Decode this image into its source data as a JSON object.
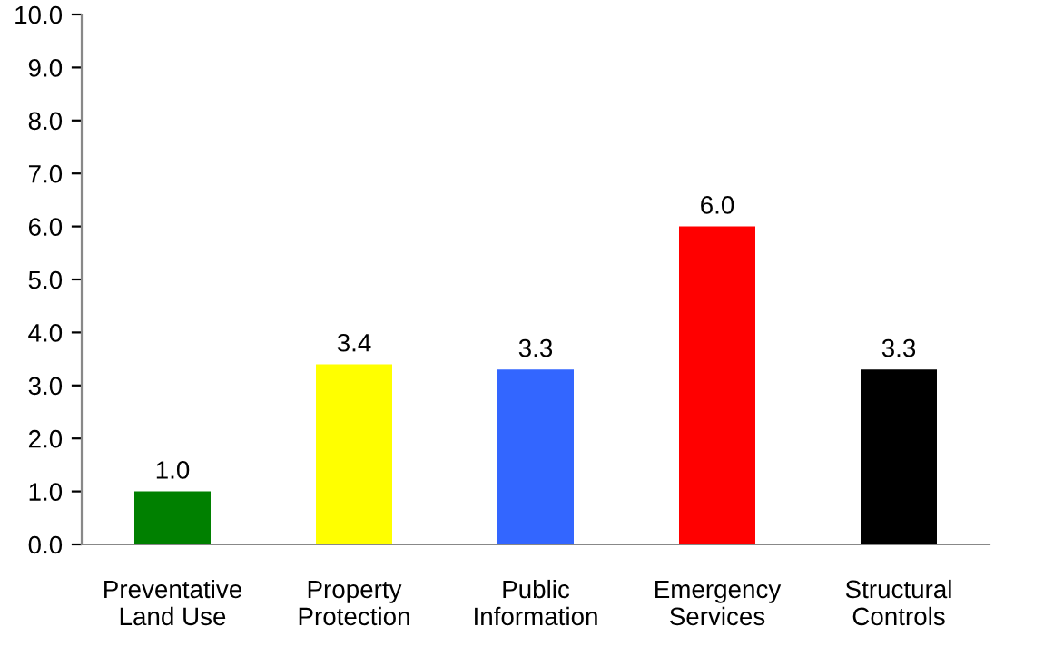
{
  "chart_data": {
    "type": "bar",
    "categories": [
      "Preventative\nLand Use",
      "Property\nProtection",
      "Public\nInformation",
      "Emergency\nServices",
      "Structural\nControls"
    ],
    "values": [
      1.0,
      3.4,
      3.3,
      6.0,
      3.3
    ],
    "colors": [
      "#008000",
      "#ffff00",
      "#3366ff",
      "#ff0000",
      "#000000"
    ],
    "ylim": [
      0,
      10
    ],
    "yticks": [
      {
        "value": 0,
        "label": "0.0"
      },
      {
        "value": 1,
        "label": "1.0"
      },
      {
        "value": 2,
        "label": "2.0"
      },
      {
        "value": 3,
        "label": "3.0"
      },
      {
        "value": 4,
        "label": "4.0"
      },
      {
        "value": 5,
        "label": "5.0"
      },
      {
        "value": 6,
        "label": "6.0"
      },
      {
        "value": 7,
        "label": "7.0"
      },
      {
        "value": 8,
        "label": "8.0"
      },
      {
        "value": 9,
        "label": "9.0"
      },
      {
        "value": 10,
        "label": "10.0"
      }
    ],
    "value_labels": [
      "1.0",
      "3.4",
      "3.3",
      "6.0",
      "3.3"
    ],
    "grid": false
  }
}
